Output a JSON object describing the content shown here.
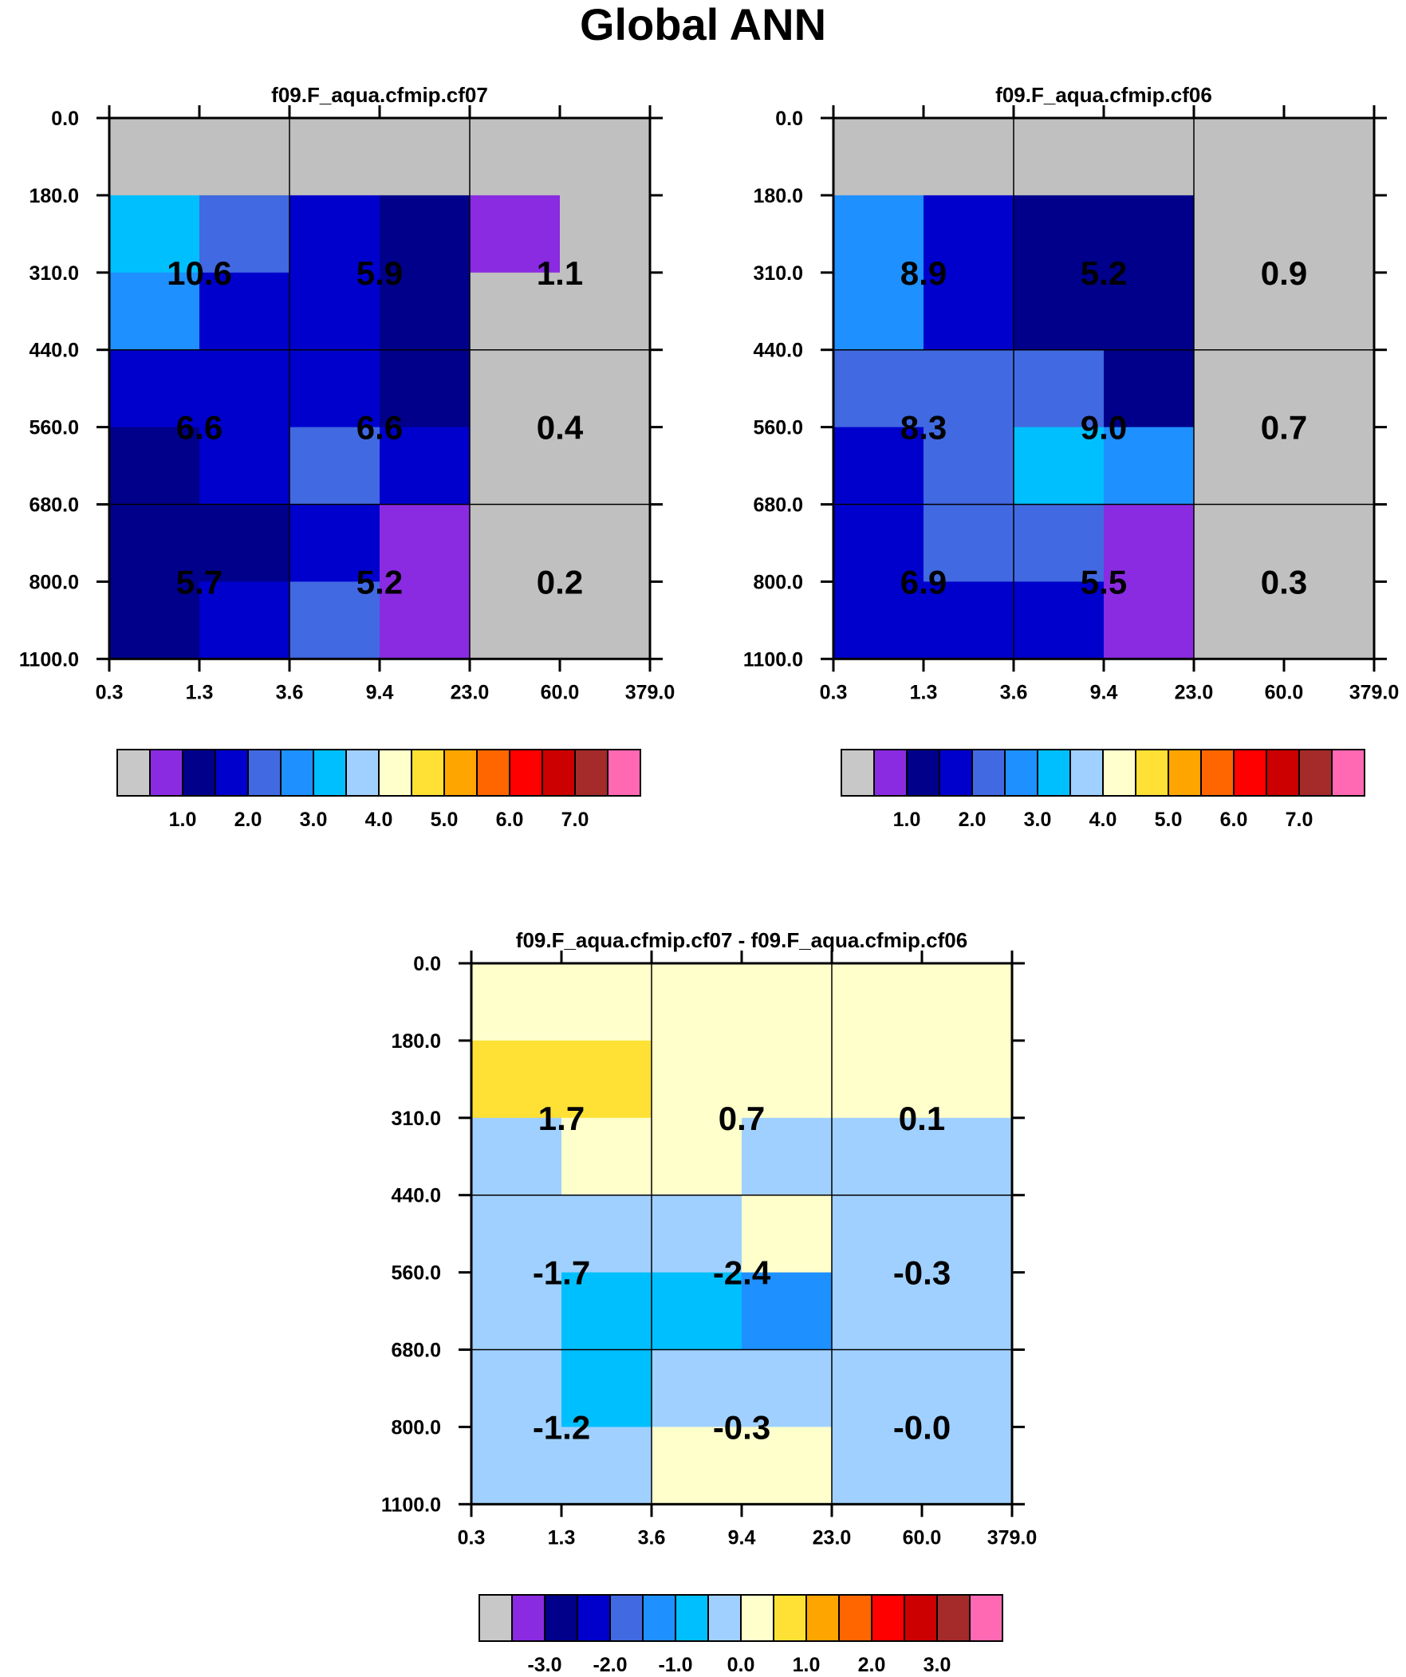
{
  "title": "Global ANN",
  "chart_data": [
    {
      "type": "heatmap",
      "title": "f09.F_aqua.cfmip.cf07",
      "x_tick_labels": [
        "0.3",
        "1.3",
        "3.6",
        "9.4",
        "23.0",
        "60.0",
        "379.0"
      ],
      "y_tick_labels": [
        "0.0",
        "180.0",
        "310.0",
        "440.0",
        "560.0",
        "680.0",
        "800.0",
        "1100.0"
      ],
      "cell_colors": [
        [
          "#c0c0c0",
          "#c0c0c0",
          "#c0c0c0",
          "#c0c0c0",
          "#c0c0c0",
          "#c0c0c0"
        ],
        [
          "#00bfff",
          "#4169e1",
          "#0000cd",
          "#00008b",
          "#8a2be2",
          "#c0c0c0"
        ],
        [
          "#1e90ff",
          "#0000cd",
          "#0000cd",
          "#00008b",
          "#c0c0c0",
          "#c0c0c0"
        ],
        [
          "#0000cd",
          "#0000cd",
          "#0000cd",
          "#00008b",
          "#c0c0c0",
          "#c0c0c0"
        ],
        [
          "#00008b",
          "#0000cd",
          "#4169e1",
          "#0000cd",
          "#c0c0c0",
          "#c0c0c0"
        ],
        [
          "#00008b",
          "#00008b",
          "#0000cd",
          "#8a2be2",
          "#c0c0c0",
          "#c0c0c0"
        ],
        [
          "#00008b",
          "#0000cd",
          "#4169e1",
          "#8a2be2",
          "#c0c0c0",
          "#c0c0c0"
        ]
      ],
      "totals": [
        [
          "10.6",
          "5.9",
          "1.1"
        ],
        [
          "6.6",
          "6.6",
          "0.4"
        ],
        [
          "5.7",
          "5.2",
          "0.2"
        ]
      ],
      "colorbar": {
        "colors": [
          "#c8c8c8",
          "#8a2be2",
          "#00008b",
          "#0000cd",
          "#4169e1",
          "#1e90ff",
          "#00bfff",
          "#a0d0ff",
          "#ffffcc",
          "#ffe135",
          "#ffa500",
          "#ff6600",
          "#ff0000",
          "#cc0000",
          "#a52a2a",
          "#ff69b4"
        ],
        "labels": [
          "1.0",
          "2.0",
          "3.0",
          "4.0",
          "5.0",
          "6.0",
          "7.0"
        ],
        "label_start_index": 2,
        "label_step": 2
      }
    },
    {
      "type": "heatmap",
      "title": "f09.F_aqua.cfmip.cf06",
      "x_tick_labels": [
        "0.3",
        "1.3",
        "3.6",
        "9.4",
        "23.0",
        "60.0",
        "379.0"
      ],
      "y_tick_labels": [
        "0.0",
        "180.0",
        "310.0",
        "440.0",
        "560.0",
        "680.0",
        "800.0",
        "1100.0"
      ],
      "cell_colors": [
        [
          "#c0c0c0",
          "#c0c0c0",
          "#c0c0c0",
          "#c0c0c0",
          "#c0c0c0",
          "#c0c0c0"
        ],
        [
          "#1e90ff",
          "#0000cd",
          "#00008b",
          "#00008b",
          "#c0c0c0",
          "#c0c0c0"
        ],
        [
          "#1e90ff",
          "#0000cd",
          "#00008b",
          "#00008b",
          "#c0c0c0",
          "#c0c0c0"
        ],
        [
          "#4169e1",
          "#4169e1",
          "#4169e1",
          "#00008b",
          "#c0c0c0",
          "#c0c0c0"
        ],
        [
          "#0000cd",
          "#4169e1",
          "#00bfff",
          "#1e90ff",
          "#c0c0c0",
          "#c0c0c0"
        ],
        [
          "#0000cd",
          "#4169e1",
          "#4169e1",
          "#8a2be2",
          "#c0c0c0",
          "#c0c0c0"
        ],
        [
          "#0000cd",
          "#0000cd",
          "#0000cd",
          "#8a2be2",
          "#c0c0c0",
          "#c0c0c0"
        ]
      ],
      "totals": [
        [
          "8.9",
          "5.2",
          "0.9"
        ],
        [
          "8.3",
          "9.0",
          "0.7"
        ],
        [
          "6.9",
          "5.5",
          "0.3"
        ]
      ],
      "colorbar": {
        "colors": [
          "#c8c8c8",
          "#8a2be2",
          "#00008b",
          "#0000cd",
          "#4169e1",
          "#1e90ff",
          "#00bfff",
          "#a0d0ff",
          "#ffffcc",
          "#ffe135",
          "#ffa500",
          "#ff6600",
          "#ff0000",
          "#cc0000",
          "#a52a2a",
          "#ff69b4"
        ],
        "labels": [
          "1.0",
          "2.0",
          "3.0",
          "4.0",
          "5.0",
          "6.0",
          "7.0"
        ],
        "label_start_index": 2,
        "label_step": 2
      }
    },
    {
      "type": "heatmap",
      "title": "f09.F_aqua.cfmip.cf07 - f09.F_aqua.cfmip.cf06",
      "x_tick_labels": [
        "0.3",
        "1.3",
        "3.6",
        "9.4",
        "23.0",
        "60.0",
        "379.0"
      ],
      "y_tick_labels": [
        "0.0",
        "180.0",
        "310.0",
        "440.0",
        "560.0",
        "680.0",
        "800.0",
        "1100.0"
      ],
      "cell_colors": [
        [
          "#ffffcc",
          "#ffffcc",
          "#ffffcc",
          "#ffffcc",
          "#ffffcc",
          "#ffffcc"
        ],
        [
          "#ffe135",
          "#ffe135",
          "#ffffcc",
          "#ffffcc",
          "#ffffcc",
          "#ffffcc"
        ],
        [
          "#a0d0ff",
          "#ffffcc",
          "#ffffcc",
          "#a0d0ff",
          "#a0d0ff",
          "#a0d0ff"
        ],
        [
          "#a0d0ff",
          "#a0d0ff",
          "#a0d0ff",
          "#ffffcc",
          "#a0d0ff",
          "#a0d0ff"
        ],
        [
          "#a0d0ff",
          "#00bfff",
          "#00bfff",
          "#1e90ff",
          "#a0d0ff",
          "#a0d0ff"
        ],
        [
          "#a0d0ff",
          "#00bfff",
          "#a0d0ff",
          "#a0d0ff",
          "#a0d0ff",
          "#a0d0ff"
        ],
        [
          "#a0d0ff",
          "#a0d0ff",
          "#ffffcc",
          "#ffffcc",
          "#a0d0ff",
          "#a0d0ff"
        ]
      ],
      "totals": [
        [
          "1.7",
          "0.7",
          "0.1"
        ],
        [
          "-1.7",
          "-2.4",
          "-0.3"
        ],
        [
          "-1.2",
          "-0.3",
          "-0.0"
        ]
      ],
      "colorbar": {
        "colors": [
          "#c8c8c8",
          "#8a2be2",
          "#00008b",
          "#0000cd",
          "#4169e1",
          "#1e90ff",
          "#00bfff",
          "#a0d0ff",
          "#ffffcc",
          "#ffe135",
          "#ffa500",
          "#ff6600",
          "#ff0000",
          "#cc0000",
          "#a52a2a",
          "#ff69b4"
        ],
        "labels": [
          "-3.0",
          "-2.0",
          "-1.0",
          "0.0",
          "1.0",
          "2.0",
          "3.0"
        ],
        "label_start_index": 2,
        "label_step": 2
      }
    }
  ]
}
